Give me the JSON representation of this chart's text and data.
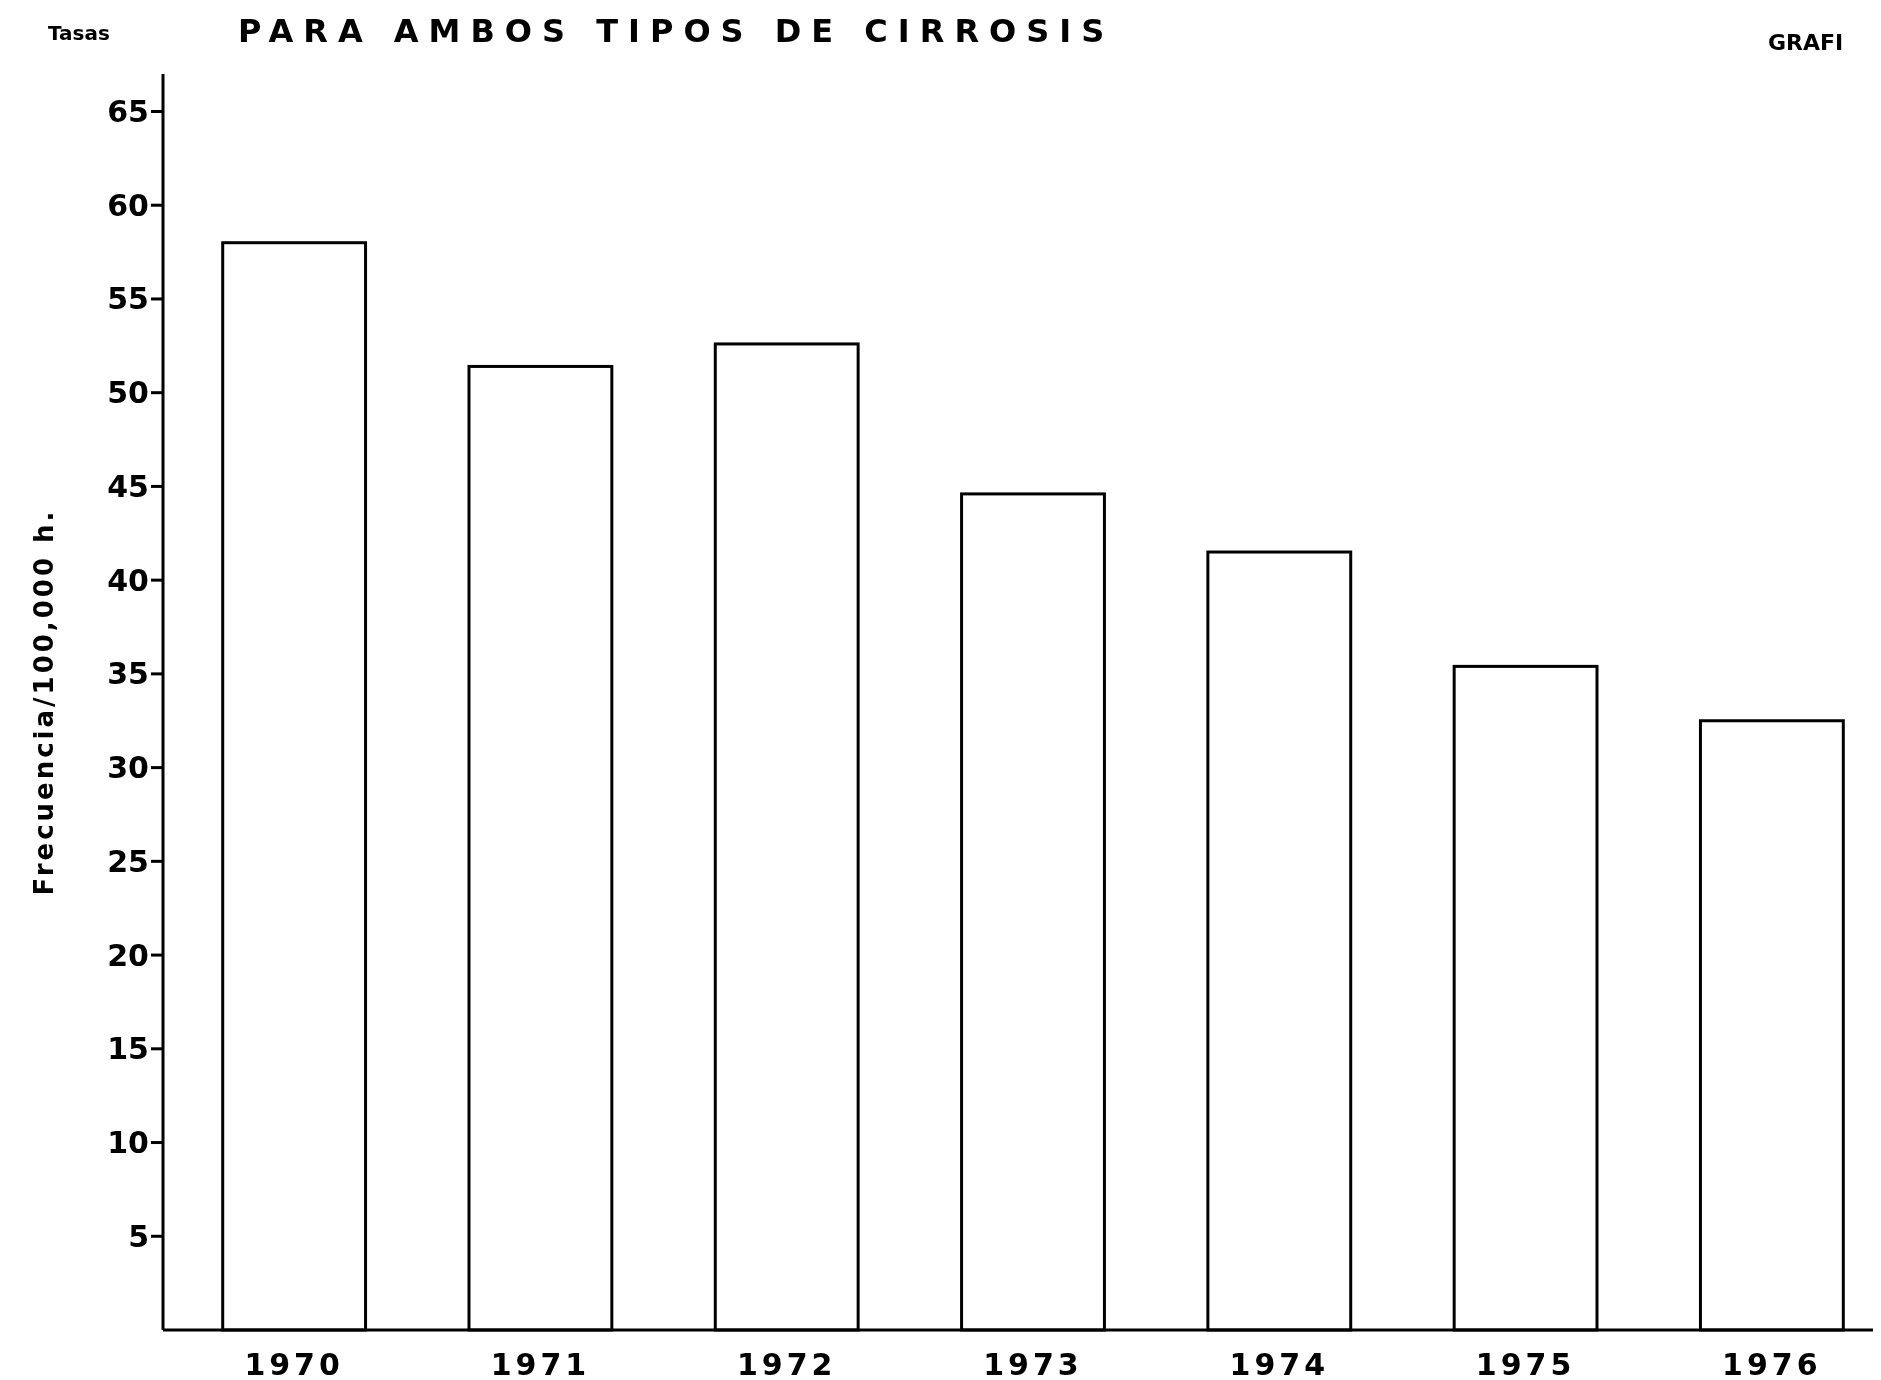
{
  "chart_data": {
    "type": "bar",
    "title": "PARA AMBOS TIPOS DE CIRROSIS",
    "ylabel": "Frecuencia/100,000 h.",
    "annotations": [
      "Tasas",
      "GRAFI"
    ],
    "categories": [
      "1970",
      "1971",
      "1972",
      "1973",
      "1974",
      "1975",
      "1976"
    ],
    "values": [
      58,
      51.4,
      52.6,
      44.6,
      41.5,
      35.4,
      32.5
    ],
    "color": "#ffffff",
    "ylim": [
      0,
      67
    ],
    "yticks": [
      5,
      10,
      15,
      20,
      25,
      30,
      35,
      40,
      45,
      50,
      55,
      60,
      65
    ]
  }
}
